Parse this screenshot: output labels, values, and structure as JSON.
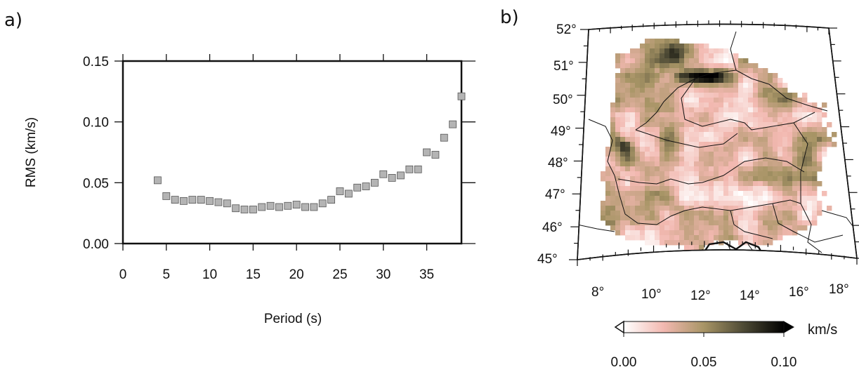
{
  "panels": {
    "a": "a)",
    "b": "b)"
  },
  "chart_data": [
    {
      "type": "scatter",
      "title": "",
      "xlabel": "Period (s)",
      "ylabel": "RMS (km/s)",
      "xlim": [
        0,
        39
      ],
      "ylim": [
        0,
        0.15
      ],
      "xticks": [
        0,
        5,
        10,
        15,
        20,
        25,
        30,
        35
      ],
      "yticks": [
        0.0,
        0.05,
        0.1,
        0.15
      ],
      "ytick_labels": [
        "0.00",
        "0.05",
        "0.10",
        "0.15"
      ],
      "marker": "square",
      "marker_color": "#b4b4b4",
      "x": [
        4,
        5,
        6,
        7,
        8,
        9,
        10,
        11,
        12,
        13,
        14,
        15,
        16,
        17,
        18,
        19,
        20,
        21,
        22,
        23,
        24,
        25,
        26,
        27,
        28,
        29,
        30,
        31,
        32,
        33,
        34,
        35,
        36,
        37,
        38,
        39
      ],
      "y": [
        0.052,
        0.039,
        0.036,
        0.035,
        0.036,
        0.036,
        0.035,
        0.034,
        0.033,
        0.029,
        0.028,
        0.028,
        0.03,
        0.031,
        0.03,
        0.031,
        0.032,
        0.03,
        0.03,
        0.033,
        0.036,
        0.043,
        0.041,
        0.046,
        0.047,
        0.05,
        0.057,
        0.054,
        0.056,
        0.061,
        0.061,
        0.075,
        0.073,
        0.087,
        0.098,
        0.121
      ]
    },
    {
      "type": "heatmap",
      "title": "",
      "lat_ticks": [
        "45°",
        "46°",
        "47°",
        "48°",
        "49°",
        "50°",
        "51°",
        "52°"
      ],
      "lon_ticks": [
        "8°",
        "10°",
        "12°",
        "14°",
        "16°",
        "18°"
      ],
      "colorbar": {
        "unit": "km/s",
        "ticks": [
          "0.00",
          "0.05",
          "0.10"
        ],
        "range": [
          0.0,
          0.1
        ],
        "colors": [
          "#ffffff",
          "#f2b8b0",
          "#a89566",
          "#4d4a35",
          "#000000"
        ]
      }
    }
  ]
}
